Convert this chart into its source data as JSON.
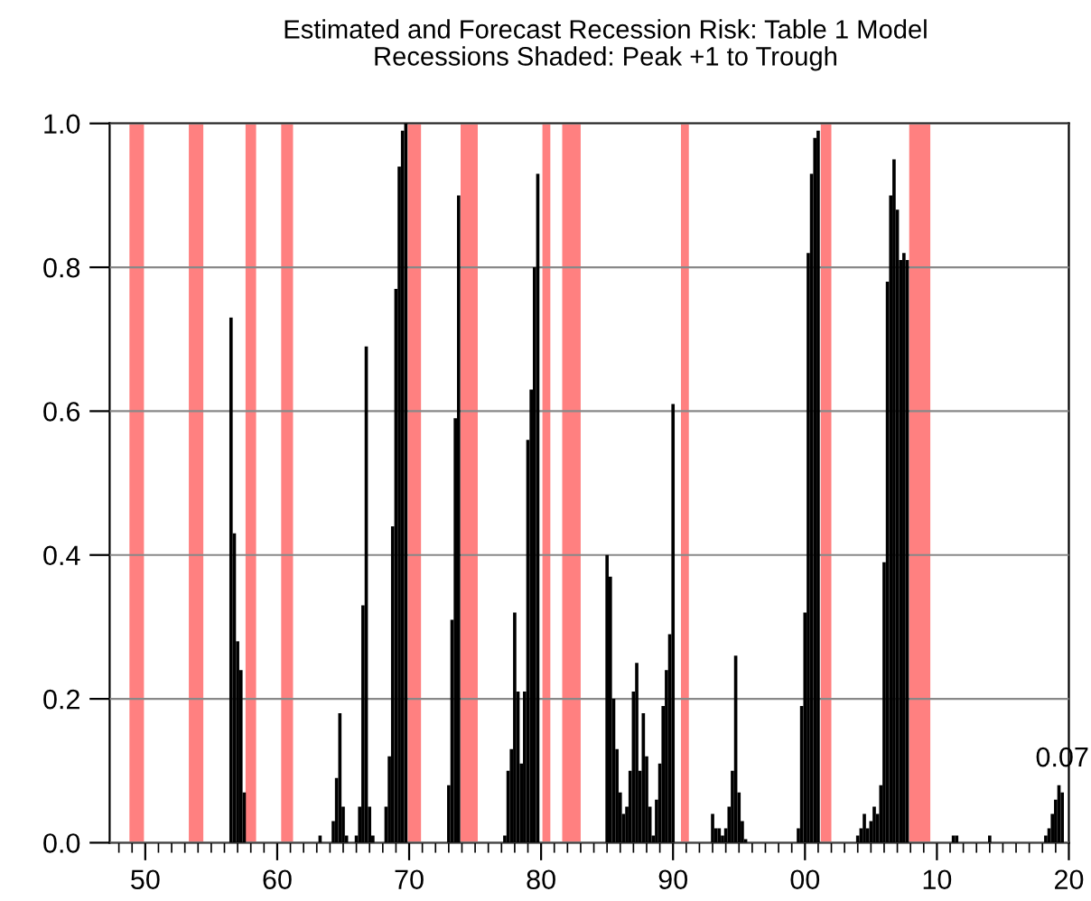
{
  "chart_data": {
    "type": "bar",
    "title": "Estimated and Forecast Recession Risk: Table 1 Model",
    "subtitle": "Recessions Shaded: Peak +1 to Trough",
    "x": [
      1956.5,
      1956.75,
      1957.0,
      1957.25,
      1957.5,
      1963.25,
      1964.25,
      1964.5,
      1964.75,
      1965.0,
      1965.25,
      1966.0,
      1966.25,
      1966.5,
      1966.75,
      1967.0,
      1967.25,
      1968.25,
      1968.5,
      1968.75,
      1969.0,
      1969.25,
      1969.5,
      1969.75,
      1973.0,
      1973.25,
      1973.5,
      1973.75,
      1977.25,
      1977.5,
      1977.75,
      1978.0,
      1978.25,
      1978.5,
      1978.75,
      1979.0,
      1979.25,
      1979.5,
      1979.75,
      1985.0,
      1985.25,
      1985.5,
      1985.75,
      1986.0,
      1986.25,
      1986.5,
      1986.75,
      1987.0,
      1987.25,
      1987.5,
      1987.75,
      1988.0,
      1988.25,
      1988.5,
      1988.75,
      1989.0,
      1989.25,
      1989.5,
      1989.75,
      1990.0,
      1993.0,
      1993.25,
      1993.5,
      1993.75,
      1994.0,
      1994.25,
      1994.5,
      1994.75,
      1995.0,
      1995.25,
      1995.5,
      1999.5,
      1999.75,
      2000.0,
      2000.25,
      2000.5,
      2000.75,
      2001.0,
      2004.0,
      2004.25,
      2004.5,
      2004.75,
      2005.0,
      2005.25,
      2005.5,
      2005.75,
      2006.0,
      2006.25,
      2006.5,
      2006.75,
      2007.0,
      2007.25,
      2007.5,
      2007.75,
      2011.25,
      2011.5,
      2014.0,
      2018.25,
      2018.5,
      2018.75,
      2019.0,
      2019.25,
      2019.5
    ],
    "values": [
      0.73,
      0.43,
      0.28,
      0.24,
      0.07,
      0.01,
      0.03,
      0.09,
      0.18,
      0.05,
      0.01,
      0.01,
      0.05,
      0.33,
      0.69,
      0.05,
      0.01,
      0.05,
      0.12,
      0.44,
      0.77,
      0.94,
      0.99,
      1.0,
      0.08,
      0.31,
      0.59,
      0.9,
      0.01,
      0.1,
      0.13,
      0.32,
      0.21,
      0.11,
      0.21,
      0.56,
      0.63,
      0.8,
      0.93,
      0.4,
      0.37,
      0.2,
      0.13,
      0.07,
      0.04,
      0.05,
      0.1,
      0.21,
      0.25,
      0.1,
      0.18,
      0.12,
      0.05,
      0.01,
      0.06,
      0.11,
      0.19,
      0.24,
      0.29,
      0.61,
      0.04,
      0.02,
      0.02,
      0.01,
      0.02,
      0.05,
      0.1,
      0.26,
      0.07,
      0.03,
      0.005,
      0.02,
      0.19,
      0.32,
      0.82,
      0.93,
      0.98,
      0.99,
      0.01,
      0.02,
      0.04,
      0.02,
      0.03,
      0.05,
      0.04,
      0.08,
      0.39,
      0.78,
      0.9,
      0.95,
      0.88,
      0.81,
      0.82,
      0.81,
      0.01,
      0.01,
      0.01,
      0.01,
      0.02,
      0.04,
      0.06,
      0.08,
      0.07
    ],
    "color": "#000000",
    "xlim": [
      1947.3,
      2020
    ],
    "xticks": [
      {
        "value": 1950,
        "label": "50"
      },
      {
        "value": 1960,
        "label": "60"
      },
      {
        "value": 1970,
        "label": "70"
      },
      {
        "value": 1980,
        "label": "80"
      },
      {
        "value": 1990,
        "label": "90"
      },
      {
        "value": 2000,
        "label": "00"
      },
      {
        "value": 2010,
        "label": "10"
      },
      {
        "value": 2020,
        "label": "20"
      }
    ],
    "ylim": [
      0,
      1.0
    ],
    "yticks": [
      {
        "value": 0,
        "label": "0.0"
      },
      {
        "value": 0.2,
        "label": "0.2"
      },
      {
        "value": 0.4,
        "label": "0.4"
      },
      {
        "value": 0.6,
        "label": "0.6"
      },
      {
        "value": 0.8,
        "label": "0.8"
      },
      {
        "value": 1.0,
        "label": "1.0"
      }
    ],
    "grid": "y",
    "bands": [
      {
        "axis": "x",
        "from": 1948.8,
        "to": 1949.9,
        "color": "#ff8080"
      },
      {
        "axis": "x",
        "from": 1953.3,
        "to": 1954.4,
        "color": "#ff8080"
      },
      {
        "axis": "x",
        "from": 1957.6,
        "to": 1958.4,
        "color": "#ff8080"
      },
      {
        "axis": "x",
        "from": 1960.3,
        "to": 1961.2,
        "color": "#ff8080"
      },
      {
        "axis": "x",
        "from": 1969.9,
        "to": 1970.9,
        "color": "#ff8080"
      },
      {
        "axis": "x",
        "from": 1973.9,
        "to": 1975.2,
        "color": "#ff8080"
      },
      {
        "axis": "x",
        "from": 1980.1,
        "to": 1980.7,
        "color": "#ff8080"
      },
      {
        "axis": "x",
        "from": 1981.6,
        "to": 1983.0,
        "color": "#ff8080"
      },
      {
        "axis": "x",
        "from": 1990.6,
        "to": 1991.2,
        "color": "#ff8080"
      },
      {
        "axis": "x",
        "from": 2001.2,
        "to": 2002.0,
        "color": "#ff8080"
      },
      {
        "axis": "x",
        "from": 2007.9,
        "to": 2009.5,
        "color": "#ff8080"
      }
    ],
    "annotations": [
      {
        "text": "0.07",
        "x": 2019.5,
        "y": 0.07
      }
    ]
  }
}
